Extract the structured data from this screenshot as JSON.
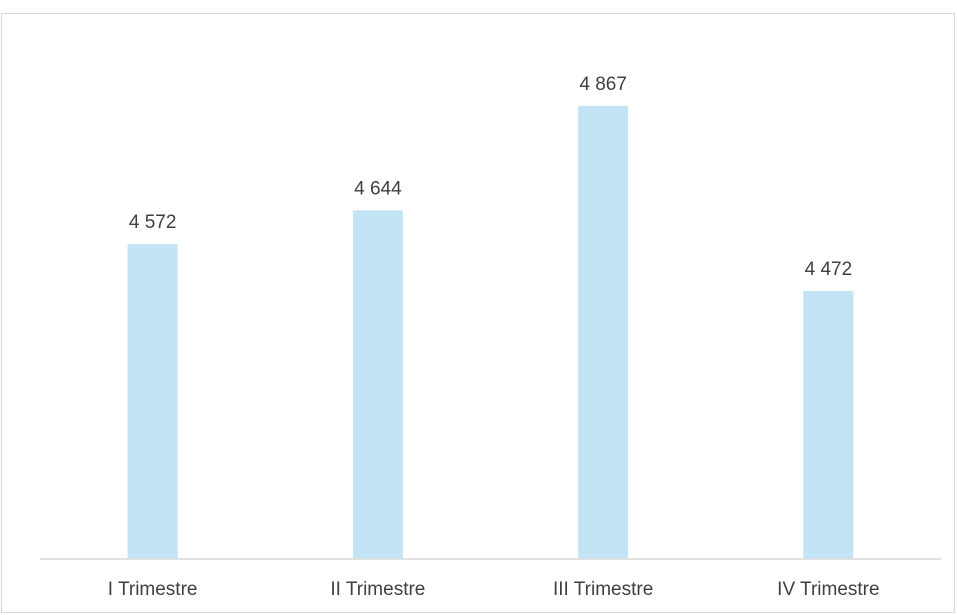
{
  "chart_data": {
    "type": "bar",
    "categories": [
      "I Trimestre",
      "II Trimestre",
      "III Trimestre",
      "IV Trimestre"
    ],
    "values": [
      4572,
      4644,
      4867,
      4472
    ],
    "value_labels": [
      "4 572",
      "4 644",
      "4 867",
      "4 472"
    ],
    "title": "",
    "xlabel": "",
    "ylabel": "",
    "ylim": [
      3900,
      4950
    ],
    "grid": false,
    "legend": "none",
    "colors": {
      "bar": "#c3e4f5",
      "axis": "#d9d9d9",
      "text": "#404040",
      "frame": "#d9d9d9"
    }
  }
}
